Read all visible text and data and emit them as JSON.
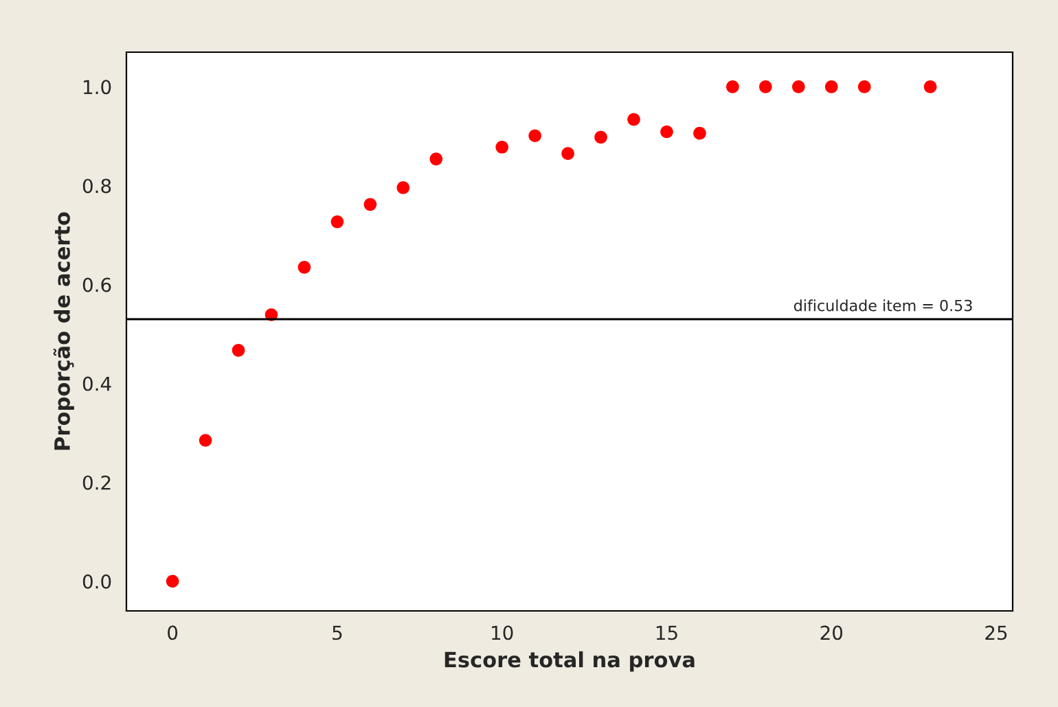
{
  "chart_data": {
    "type": "scatter",
    "xlabel": "Escore total na prova",
    "ylabel": "Proporção de acerto",
    "x": [
      0,
      1,
      2,
      3,
      4,
      5,
      6,
      7,
      8,
      10,
      11,
      12,
      13,
      14,
      15,
      16,
      17,
      18,
      19,
      20,
      21,
      23
    ],
    "values": [
      0.0,
      0.285,
      0.467,
      0.539,
      0.635,
      0.727,
      0.762,
      0.796,
      0.854,
      0.878,
      0.901,
      0.865,
      0.898,
      0.934,
      0.909,
      0.906,
      1.0,
      1.0,
      1.0,
      1.0,
      1.0,
      1.0
    ],
    "color": "#ff0000",
    "marker": "circle",
    "xlim": [
      -1.4,
      25.5
    ],
    "ylim": [
      -0.06,
      1.07
    ],
    "xticks": [
      0,
      5,
      10,
      15,
      20,
      25
    ],
    "yticks": [
      {
        "value": 0.0,
        "label": "0.0"
      },
      {
        "value": 0.2,
        "label": "0.2"
      },
      {
        "value": 0.4,
        "label": "0.4"
      },
      {
        "value": 0.6,
        "label": "0.6"
      },
      {
        "value": 0.8,
        "label": "0.8"
      },
      {
        "value": 1.0,
        "label": "1.0"
      }
    ],
    "ref_lines": [
      {
        "axis": "y",
        "value": 0.53,
        "label": "dificuldade item = 0.53",
        "color": "#000000"
      }
    ],
    "grid": false,
    "legend": false
  }
}
